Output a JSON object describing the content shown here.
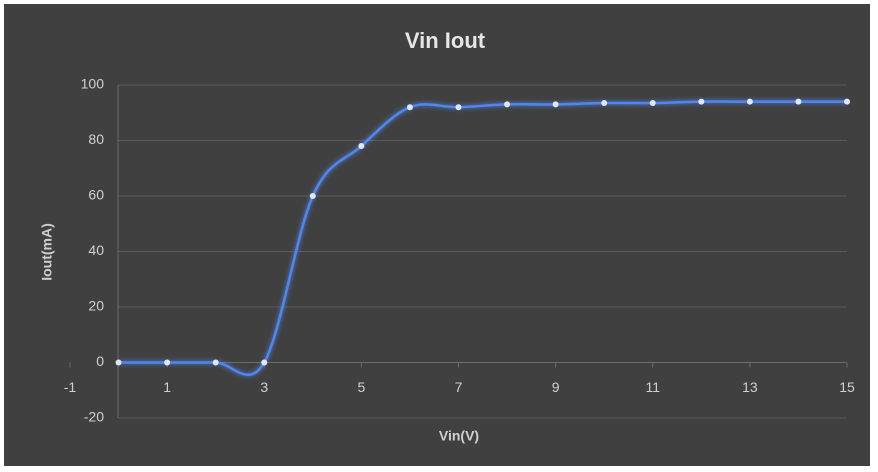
{
  "chart_data": {
    "type": "line",
    "title": "Vin Iout",
    "x_label": "Vin(V)",
    "y_label": "Iout(mA)",
    "x": [
      0,
      1,
      2,
      3,
      4,
      5,
      6,
      7,
      8,
      9,
      10,
      11,
      12,
      13,
      14,
      15
    ],
    "series": [
      {
        "name": "Iout",
        "color": "#4f86f0",
        "values": [
          0,
          0,
          0,
          0,
          60,
          78,
          92,
          92,
          93,
          93,
          93.5,
          93.5,
          94,
          94,
          94,
          94
        ]
      }
    ],
    "xlim": [
      -1,
      15
    ],
    "xticks": [
      -1,
      1,
      3,
      5,
      7,
      9,
      11,
      13,
      15
    ],
    "ylim": [
      -20,
      100
    ],
    "yticks": [
      -20,
      0,
      20,
      40,
      60,
      80,
      100
    ],
    "grid": true,
    "smooth": true
  }
}
